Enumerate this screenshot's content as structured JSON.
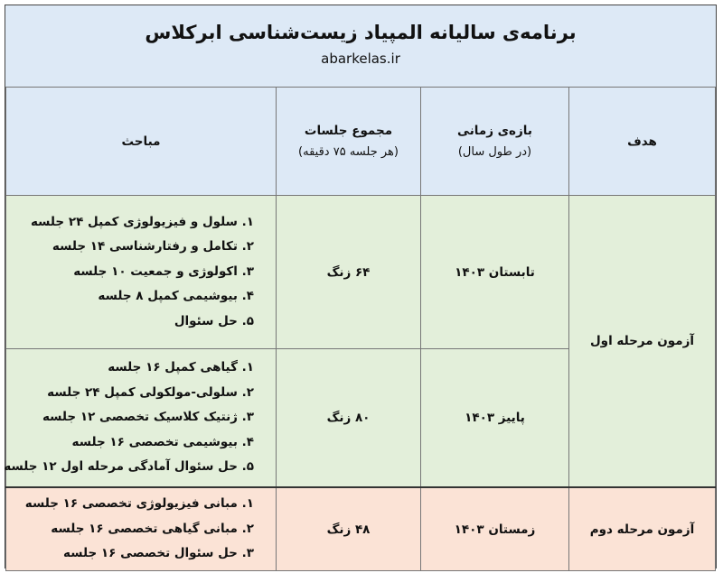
{
  "header": {
    "title": "برنامه‌ی سالیانه المپیاد زیست‌شناسی ابرکلاس",
    "site": "abarkelas.ir"
  },
  "columns": {
    "goal": "هدف",
    "period": "بازه‌ی زمانی",
    "period_sub": "(در طول سال)",
    "sessions": "مجموع جلسات",
    "sessions_sub": "(هر جلسه ۷۵ دقیقه)",
    "topics": "مباحث"
  },
  "colors": {
    "header": "#dde9f6",
    "stage1": "#e3efda",
    "stage2": "#fbe3d6"
  },
  "rows": [
    {
      "goal": "آزمون مرحله اول",
      "period": "تابستان ۱۴۰۳",
      "sessions": "۶۴ زنگ",
      "topics": [
        "۱. سلول و فیزیولوژی کمپل ۲۴ جلسه",
        "۲. تکامل و رفتارشناسی ۱۴ جلسه",
        "۳. اکولوژی و جمعیت ۱۰ جلسه",
        "۴. بیوشیمی کمپل ۸ جلسه",
        "۵. حل سئوال"
      ]
    },
    {
      "goal": "آزمون مرحله اول",
      "period": "پاییز ۱۴۰۳",
      "sessions": "۸۰ زنگ",
      "topics": [
        "۱. گیاهی کمپل ۱۶ جلسه",
        "۲. سلولی-مولکولی کمپل ۲۴ جلسه",
        "۳. ژنتیک کلاسیک تخصصی ۱۲ جلسه",
        "۴. بیوشیمی تخصصی ۱۶ جلسه",
        "۵. حل سئوال آمادگی مرحله اول ۱۲ جلسه"
      ]
    },
    {
      "goal": "آزمون مرحله دوم",
      "period": "زمستان ۱۴۰۳",
      "sessions": "۴۸ زنگ",
      "topics": [
        "۱. مبانی فیزیولوژی تخصصی ۱۶ جلسه",
        "۲. مبانی گیاهی تخصصی ۱۶ جلسه",
        "۳. حل سئوال تخصصی ۱۶ جلسه"
      ]
    }
  ]
}
